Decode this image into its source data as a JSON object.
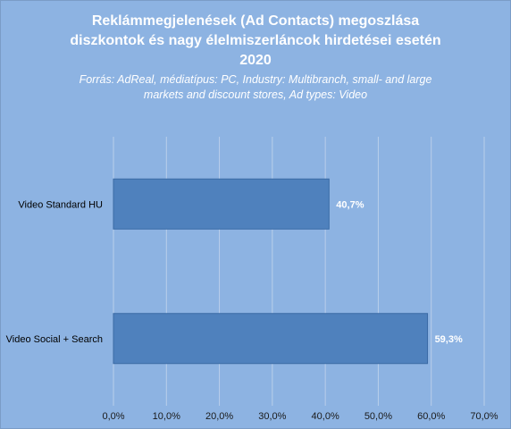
{
  "chart_data": {
    "type": "bar",
    "orientation": "horizontal",
    "title": "Reklámmegjelenések (Ad Contacts) megoszlása diszkontok és nagy élelmiszerláncok hirdetései esetén 2020",
    "title_lines": [
      "Reklámmegjelenések (Ad Contacts) megoszlása",
      "diszkontok és nagy élelmiszerláncok hirdetései esetén",
      "2020"
    ],
    "subtitle": "Forrás: AdReal, médiatípus: PC, Industry: Multibranch, small- and large markets and discount stores, Ad types: Video",
    "subtitle_lines": [
      "Forrás: AdReal, médiatípus: PC, Industry: Multibranch, small- and large",
      "markets and discount stores, Ad types: Video"
    ],
    "categories": [
      "Video Standard HU",
      "Video Social + Search"
    ],
    "values": [
      40.7,
      59.3
    ],
    "data_labels": [
      "40,7%",
      "59,3%"
    ],
    "unit": "%",
    "xlim": [
      0,
      70
    ],
    "ticks": [
      0,
      10,
      20,
      30,
      40,
      50,
      60,
      70
    ],
    "tick_labels": [
      "0,0%",
      "10,0%",
      "20,0%",
      "30,0%",
      "40,0%",
      "50,0%",
      "60,0%",
      "70,0%"
    ],
    "grid": true,
    "legend": false,
    "colors": {
      "background": "#8DB3E2",
      "bar": "#4F81BD",
      "bar_border": "#3A6AA4",
      "grid": "#B9CFEA",
      "title": "#FFFFFF"
    }
  }
}
